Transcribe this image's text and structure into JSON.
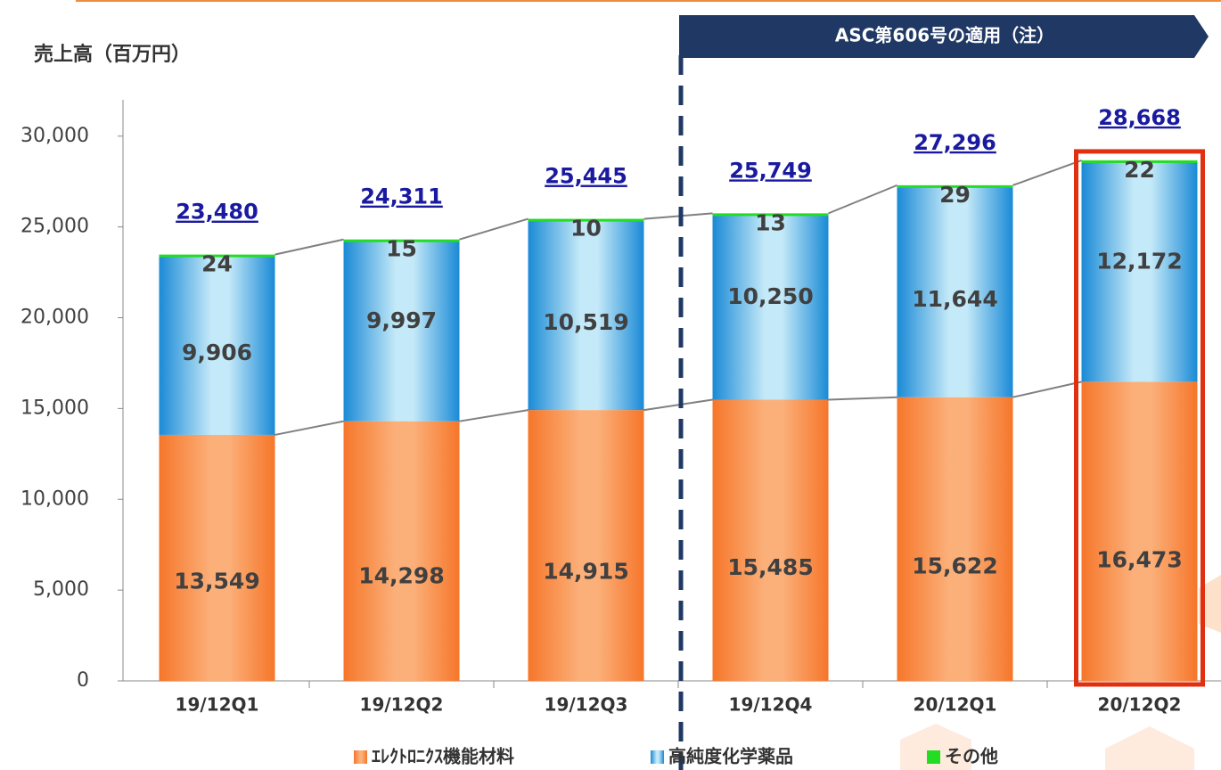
{
  "chart_data": {
    "type": "stacked_bar",
    "y_label": "売上高（百万円）",
    "annotation": "ASC第606号の適用（注）",
    "categories": [
      "19/12Q1",
      "19/12Q2",
      "19/12Q3",
      "19/12Q4",
      "20/12Q1",
      "20/12Q2"
    ],
    "series": [
      {
        "name": "ｴﾚｸﾄﾛﾆｸｽ機能材料",
        "color": "#f8863a",
        "values": [
          13549,
          14298,
          14915,
          15485,
          15622,
          16473
        ],
        "value_labels": [
          "13,549",
          "14,298",
          "14,915",
          "15,485",
          "15,622",
          "16,473"
        ]
      },
      {
        "name": "高純度化学薬品",
        "color": "#2b9ee0",
        "values": [
          9906,
          9997,
          10519,
          10250,
          11644,
          12172
        ],
        "value_labels": [
          "9,906",
          "9,997",
          "10,519",
          "10,250",
          "11,644",
          "12,172"
        ]
      },
      {
        "name": "その他",
        "color": "#22dd22",
        "values": [
          24,
          15,
          10,
          13,
          29,
          22
        ]
      }
    ],
    "totals": [
      23480,
      24311,
      25445,
      25749,
      27296,
      28668
    ],
    "total_labels": [
      "23,480",
      "24,311",
      "25,445",
      "25,749",
      "27,296",
      "28,668"
    ],
    "ylim": [
      0,
      32000
    ],
    "yticks": [
      0,
      {
        "value": 5000,
        "label": "5,000"
      },
      {
        "value": 10000,
        "label": "10,000"
      },
      {
        "value": 15000,
        "label": "15,000"
      },
      {
        "value": 20000,
        "label": "20,000"
      },
      {
        "value": 25000,
        "label": "25,000"
      },
      {
        "value": 30000,
        "label": "30,000"
      }
    ]
  }
}
